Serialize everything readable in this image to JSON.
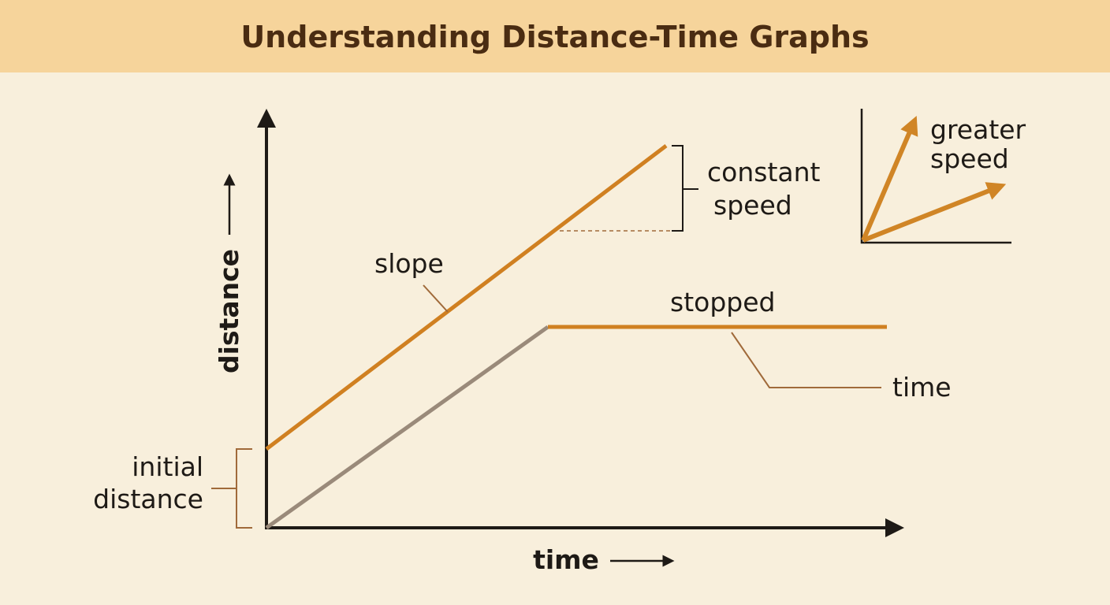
{
  "header": {
    "title": "Understanding Distance-Time Graphs"
  },
  "axes": {
    "y_label": "distance",
    "x_label": "time"
  },
  "labels": {
    "slope": "slope",
    "constant_speed": [
      "constant",
      "speed"
    ],
    "stopped": "stopped",
    "time_callout": "time",
    "initial_distance": [
      "initial",
      "distance"
    ],
    "greater_speed": [
      "greater",
      "speed"
    ]
  }
}
